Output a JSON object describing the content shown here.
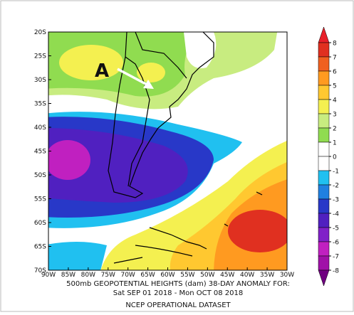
{
  "map": {
    "lat_labels": [
      "20S",
      "25S",
      "30S",
      "35S",
      "40S",
      "45S",
      "50S",
      "55S",
      "60S",
      "65S",
      "70S"
    ],
    "lon_labels": [
      "90W",
      "85W",
      "80W",
      "75W",
      "70W",
      "65W",
      "60W",
      "55W",
      "50W",
      "45W",
      "40W",
      "35W",
      "30W"
    ],
    "annotation": "A",
    "caption": [
      "500mb GEOPOTENTIAL HEIGHTS (dam)   38-DAY ANOMALY FOR:",
      "Sat SEP 01 2018 - Mon OCT 08 2018",
      "NCEP OPERATIONAL DATASET"
    ],
    "colorbar": {
      "levels": [
        8,
        7,
        6,
        5,
        4,
        3,
        2,
        1,
        0,
        -1,
        -2,
        -3,
        -4,
        -5,
        -6,
        -7,
        -8
      ],
      "colors": [
        "#e8202a",
        "#e03020",
        "#f06020",
        "#ff9a20",
        "#ffc830",
        "#f4f050",
        "#c8ec80",
        "#90dc50",
        "#ffffff",
        "#ffffff",
        "#20c0f0",
        "#2080e0",
        "#2838c8",
        "#5020c0",
        "#8020c8",
        "#c020c0",
        "#a010a8",
        "#700080"
      ]
    }
  }
}
